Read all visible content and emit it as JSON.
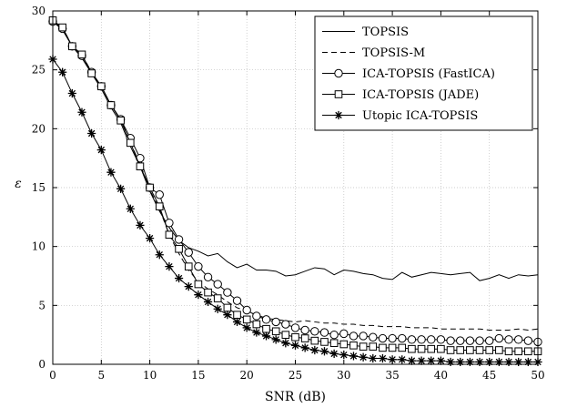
{
  "chart_data": {
    "type": "line",
    "title": "",
    "xlabel": "SNR (dB)",
    "ylabel": "ε",
    "xlim": [
      0,
      50
    ],
    "ylim": [
      0,
      30
    ],
    "xticks": [
      0,
      5,
      10,
      15,
      20,
      25,
      30,
      35,
      40,
      45,
      50
    ],
    "yticks": [
      0,
      5,
      10,
      15,
      20,
      25,
      30
    ],
    "grid": true,
    "legend_position": "top-right",
    "x": [
      0,
      1,
      2,
      3,
      4,
      5,
      6,
      7,
      8,
      9,
      10,
      11,
      12,
      13,
      14,
      15,
      16,
      17,
      18,
      19,
      20,
      21,
      22,
      23,
      24,
      25,
      26,
      27,
      28,
      29,
      30,
      31,
      32,
      33,
      34,
      35,
      36,
      37,
      38,
      39,
      40,
      41,
      42,
      43,
      44,
      45,
      46,
      47,
      48,
      49,
      50
    ],
    "series": [
      {
        "name": "TOPSIS",
        "style": "solid",
        "marker": "none",
        "values": [
          29.1,
          28.4,
          27.0,
          26.0,
          24.7,
          23.4,
          21.8,
          20.5,
          18.5,
          16.8,
          14.7,
          13.0,
          11.6,
          10.5,
          9.9,
          9.6,
          9.2,
          9.4,
          8.7,
          8.2,
          8.5,
          8.0,
          8.0,
          7.9,
          7.5,
          7.6,
          7.9,
          8.2,
          8.1,
          7.6,
          8.0,
          7.9,
          7.7,
          7.6,
          7.3,
          7.2,
          7.8,
          7.4,
          7.6,
          7.8,
          7.7,
          7.6,
          7.7,
          7.8,
          7.1,
          7.3,
          7.6,
          7.3,
          7.6,
          7.5,
          7.6
        ]
      },
      {
        "name": "TOPSIS-M",
        "style": "dashed",
        "marker": "none",
        "values": [
          29.1,
          28.6,
          27.0,
          26.3,
          24.8,
          23.6,
          22.0,
          20.8,
          18.8,
          17.0,
          14.8,
          13.2,
          11.0,
          9.4,
          8.0,
          7.0,
          6.4,
          5.9,
          5.3,
          4.8,
          4.5,
          4.2,
          3.9,
          3.8,
          3.7,
          3.6,
          3.7,
          3.6,
          3.5,
          3.5,
          3.4,
          3.4,
          3.3,
          3.3,
          3.2,
          3.2,
          3.2,
          3.1,
          3.1,
          3.1,
          3.0,
          3.0,
          3.0,
          3.0,
          3.0,
          2.9,
          2.9,
          2.9,
          3.0,
          2.9,
          3.0
        ]
      },
      {
        "name": "ICA-TOPSIS (FastICA)",
        "style": "solid",
        "marker": "circle",
        "values": [
          29.1,
          28.5,
          27.0,
          26.2,
          24.8,
          23.6,
          22.0,
          20.8,
          19.2,
          17.5,
          15.0,
          14.4,
          12.0,
          10.6,
          9.5,
          8.3,
          7.4,
          6.8,
          6.1,
          5.4,
          4.6,
          4.1,
          3.8,
          3.6,
          3.4,
          3.1,
          2.9,
          2.8,
          2.7,
          2.5,
          2.6,
          2.4,
          2.4,
          2.3,
          2.2,
          2.2,
          2.2,
          2.1,
          2.1,
          2.1,
          2.1,
          2.0,
          2.0,
          2.0,
          2.0,
          2.0,
          2.2,
          2.1,
          2.1,
          2.0,
          1.9
        ]
      },
      {
        "name": "ICA-TOPSIS (JADE)",
        "style": "solid",
        "marker": "square",
        "values": [
          29.2,
          28.6,
          27.0,
          26.3,
          24.7,
          23.6,
          22.0,
          20.7,
          18.8,
          16.8,
          15.0,
          13.4,
          11.0,
          9.8,
          8.3,
          6.8,
          6.1,
          5.6,
          4.8,
          4.2,
          3.8,
          3.4,
          3.0,
          2.8,
          2.5,
          2.3,
          2.2,
          2.0,
          1.9,
          1.8,
          1.7,
          1.6,
          1.5,
          1.5,
          1.4,
          1.4,
          1.4,
          1.3,
          1.3,
          1.3,
          1.3,
          1.2,
          1.2,
          1.2,
          1.2,
          1.2,
          1.2,
          1.1,
          1.1,
          1.1,
          1.1
        ]
      },
      {
        "name": "Utopic ICA-TOPSIS",
        "style": "solid",
        "marker": "star",
        "values": [
          25.9,
          24.8,
          23.0,
          21.4,
          19.6,
          18.2,
          16.3,
          14.9,
          13.2,
          11.8,
          10.7,
          9.3,
          8.3,
          7.3,
          6.6,
          5.9,
          5.3,
          4.7,
          4.2,
          3.6,
          3.1,
          2.7,
          2.4,
          2.1,
          1.8,
          1.6,
          1.4,
          1.2,
          1.1,
          0.9,
          0.8,
          0.7,
          0.6,
          0.5,
          0.5,
          0.4,
          0.4,
          0.3,
          0.3,
          0.3,
          0.3,
          0.2,
          0.2,
          0.2,
          0.2,
          0.2,
          0.2,
          0.2,
          0.2,
          0.2,
          0.2
        ]
      }
    ]
  }
}
